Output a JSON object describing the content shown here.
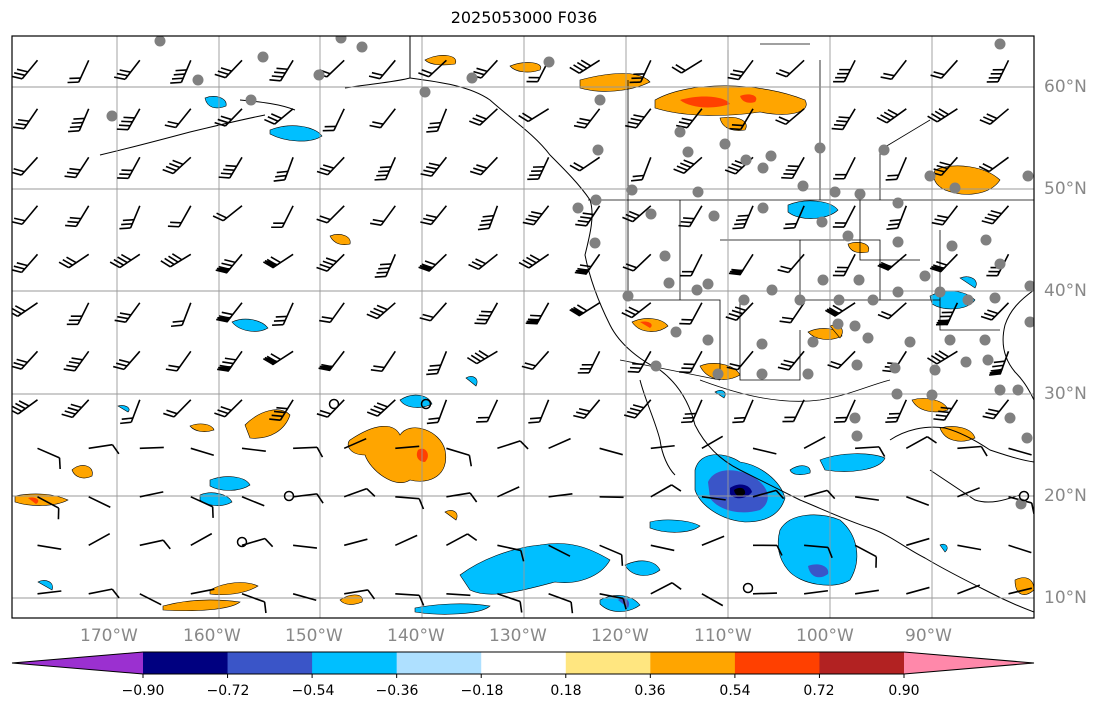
{
  "title": "2025053000 F036",
  "map": {
    "lon_labels": [
      "170°W",
      "160°W",
      "150°W",
      "140°W",
      "130°W",
      "120°W",
      "110°W",
      "100°W",
      "90°W"
    ],
    "lat_labels": [
      "60°N",
      "50°N",
      "40°N",
      "30°N",
      "20°N",
      "10°N"
    ],
    "gridline_color": "#999999"
  },
  "colorbar": {
    "tick_labels": [
      "−0.90",
      "−0.72",
      "−0.54",
      "−0.36",
      "−0.18",
      "0.18",
      "0.36",
      "0.54",
      "0.72",
      "0.90"
    ],
    "colors": [
      "#9b30d0",
      "#000080",
      "#3a55c8",
      "#00bfff",
      "#aee0ff",
      "#ffffff",
      "#ffe680",
      "#ffa500",
      "#ff4000",
      "#b22222",
      "#ff88aa"
    ]
  },
  "colors": {
    "positive_low": "#ffa500",
    "positive_mid": "#ff4000",
    "negative_low": "#00bfff",
    "negative_mid": "#3a55c8",
    "negative_high": "#000080",
    "station": "#808080"
  }
}
